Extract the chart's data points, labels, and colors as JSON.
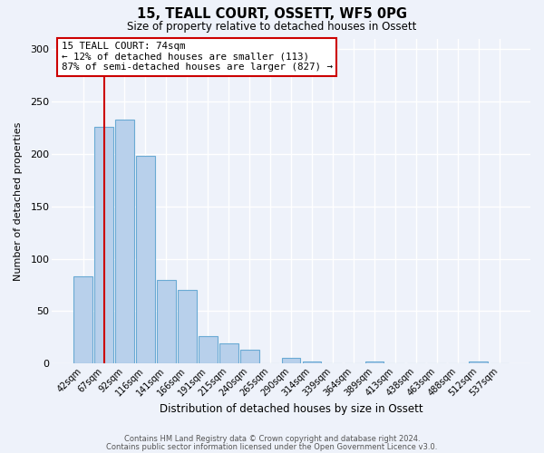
{
  "title": "15, TEALL COURT, OSSETT, WF5 0PG",
  "subtitle": "Size of property relative to detached houses in Ossett",
  "xlabel": "Distribution of detached houses by size in Ossett",
  "ylabel": "Number of detached properties",
  "bar_labels": [
    "42sqm",
    "67sqm",
    "92sqm",
    "116sqm",
    "141sqm",
    "166sqm",
    "191sqm",
    "215sqm",
    "240sqm",
    "265sqm",
    "290sqm",
    "314sqm",
    "339sqm",
    "364sqm",
    "389sqm",
    "413sqm",
    "438sqm",
    "463sqm",
    "488sqm",
    "512sqm",
    "537sqm"
  ],
  "bar_values": [
    83,
    226,
    233,
    198,
    80,
    70,
    26,
    19,
    13,
    0,
    5,
    2,
    0,
    0,
    2,
    0,
    0,
    0,
    0,
    2,
    0
  ],
  "bar_color": "#b8d0eb",
  "bar_edge_color": "#6aaad4",
  "background_color": "#eef2fa",
  "grid_color": "#ffffff",
  "vline_color": "#cc0000",
  "annotation_text": "15 TEALL COURT: 74sqm\n← 12% of detached houses are smaller (113)\n87% of semi-detached houses are larger (827) →",
  "annotation_box_edgecolor": "#cc0000",
  "ylim": [
    0,
    310
  ],
  "yticks": [
    0,
    50,
    100,
    150,
    200,
    250,
    300
  ],
  "footer_line1": "Contains HM Land Registry data © Crown copyright and database right 2024.",
  "footer_line2": "Contains public sector information licensed under the Open Government Licence v3.0."
}
